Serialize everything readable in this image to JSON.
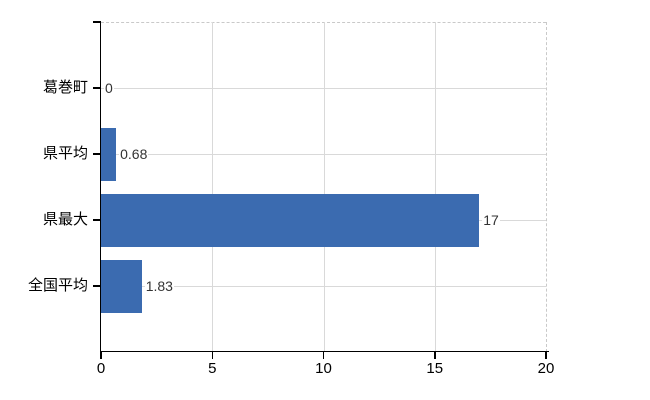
{
  "chart_data": {
    "type": "bar",
    "orientation": "horizontal",
    "title": "",
    "xlabel": "",
    "ylabel": "",
    "categories": [
      "葛巻町",
      "県平均",
      "県最大",
      "全国平均"
    ],
    "values": [
      0,
      0.68,
      17,
      1.83
    ],
    "value_labels": [
      "0",
      "0.68",
      "17",
      "1.83"
    ],
    "xticks": [
      0,
      5,
      10,
      15,
      20
    ],
    "xlim": [
      0,
      20
    ],
    "grid": true,
    "legend": false,
    "colors": {
      "bar": "#3b6bb0",
      "gridline": "#d9d9d9",
      "boundary_dashed": "#c9c9c9",
      "axis": "#000000",
      "value_text": "#333333",
      "label_text": "#000000",
      "background": "#ffffff"
    }
  }
}
